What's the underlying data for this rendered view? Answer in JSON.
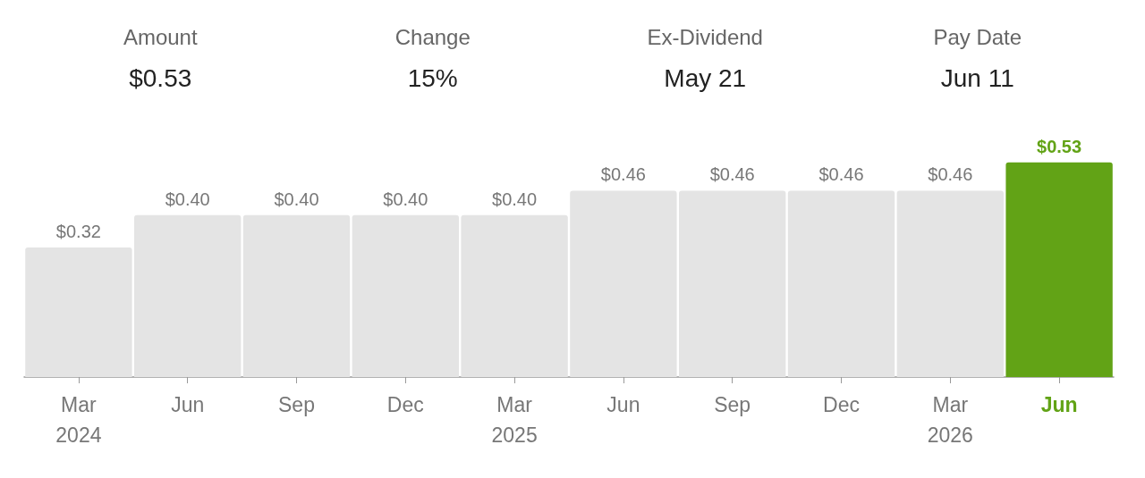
{
  "chart_data": [
    {
      "type": "other",
      "annotations": [
        "Amount",
        "$0.53",
        "Change",
        "15%",
        "Ex-Dividend",
        "May 21",
        "Pay Date",
        "Jun 11"
      ]
    },
    {
      "type": "bar",
      "categories": [
        "Mar\n2024",
        "Jun",
        "Sep",
        "Dec",
        "Mar\n2025",
        "Jun",
        "Sep",
        "Dec",
        "Mar\n2026",
        "Jun"
      ],
      "values": [
        0.32,
        0.4,
        0.4,
        0.4,
        0.4,
        0.46,
        0.46,
        0.46,
        0.46,
        0.53
      ],
      "colors": [
        "#e4e4e4",
        "#e4e4e4",
        "#e4e4e4",
        "#e4e4e4",
        "#e4e4e4",
        "#e4e4e4",
        "#e4e4e4",
        "#e4e4e4",
        "#e4e4e4",
        "#62a316"
      ],
      "value_labels": [
        "$0.32",
        "$0.40",
        "$0.40",
        "$0.40",
        "$0.40",
        "$0.46",
        "$0.46",
        "$0.46",
        "$0.46",
        "$0.53"
      ]
    }
  ]
}
